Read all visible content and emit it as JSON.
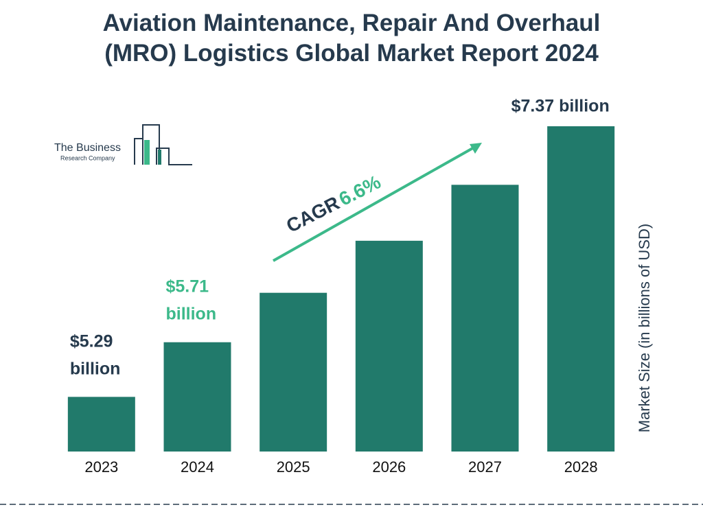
{
  "chart_data": {
    "type": "bar",
    "title": "Aviation Maintenance, Repair And Overhaul (MRO) Logistics Global Market Report 2024",
    "y_label": "Market Size (in billions of USD)",
    "categories": [
      "2023",
      "2024",
      "2025",
      "2026",
      "2027",
      "2028"
    ],
    "values": [
      5.29,
      5.71,
      6.09,
      6.49,
      6.92,
      7.37
    ],
    "value_labels": [
      "$5.29 billion",
      "$5.71 billion",
      null,
      null,
      null,
      "$7.37 billion"
    ],
    "value_label_colors": [
      "#263a4d",
      "#3cb98a",
      null,
      null,
      null,
      "#263a4d"
    ],
    "color": "#217a6b",
    "ylim": [
      4.87,
      7.37
    ],
    "cagr_label": "CAGR",
    "cagr_value": "6.6%"
  },
  "logo": {
    "line1": "The Business",
    "line2": "Research Company"
  }
}
